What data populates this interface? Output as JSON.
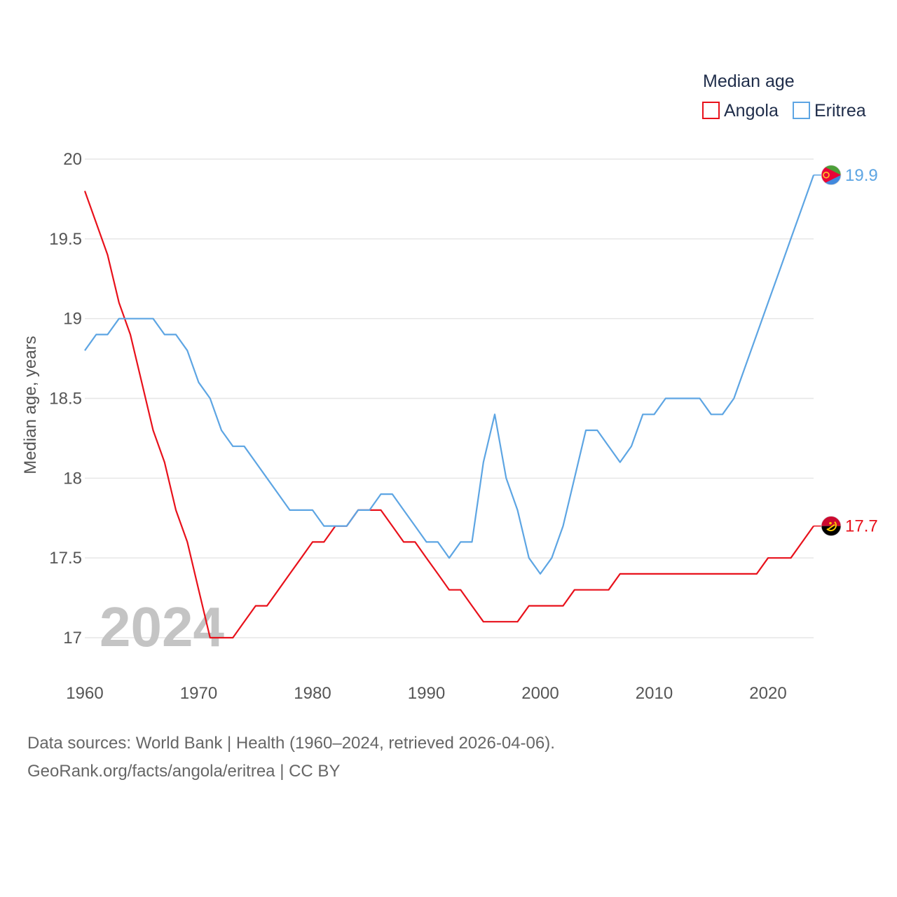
{
  "chart_data": {
    "type": "line",
    "title": "Median age",
    "ylabel": "Median age, years",
    "xlabel": "",
    "xlim": [
      1960,
      2024
    ],
    "ylim": [
      17,
      20
    ],
    "x_ticks": [
      1960,
      1970,
      1980,
      1990,
      2000,
      2010,
      2020
    ],
    "y_ticks": [
      17,
      17.5,
      18,
      18.5,
      19,
      19.5,
      20
    ],
    "y_tick_labels": [
      "17",
      "17.5",
      "18",
      "18.5",
      "19",
      "19.5",
      "20"
    ],
    "grid": true,
    "legend_position": "top-right",
    "year_label": "2024",
    "x": [
      1960,
      1961,
      1962,
      1963,
      1964,
      1965,
      1966,
      1967,
      1968,
      1969,
      1970,
      1971,
      1972,
      1973,
      1974,
      1975,
      1976,
      1977,
      1978,
      1979,
      1980,
      1981,
      1982,
      1983,
      1984,
      1985,
      1986,
      1987,
      1988,
      1989,
      1990,
      1991,
      1992,
      1993,
      1994,
      1995,
      1996,
      1997,
      1998,
      1999,
      2000,
      2001,
      2002,
      2003,
      2004,
      2005,
      2006,
      2007,
      2008,
      2009,
      2010,
      2011,
      2012,
      2013,
      2014,
      2015,
      2016,
      2017,
      2018,
      2019,
      2020,
      2021,
      2022,
      2023,
      2024
    ],
    "series": [
      {
        "name": "Angola",
        "color": "#e8111b",
        "end_label": "17.7",
        "flag": "angola-flag-icon",
        "values": [
          19.8,
          19.6,
          19.4,
          19.1,
          18.9,
          18.6,
          18.3,
          18.1,
          17.8,
          17.6,
          17.3,
          17.0,
          17.0,
          17.0,
          17.1,
          17.2,
          17.2,
          17.3,
          17.4,
          17.5,
          17.6,
          17.6,
          17.7,
          17.7,
          17.8,
          17.8,
          17.8,
          17.7,
          17.6,
          17.6,
          17.5,
          17.4,
          17.3,
          17.3,
          17.2,
          17.1,
          17.1,
          17.1,
          17.1,
          17.2,
          17.2,
          17.2,
          17.2,
          17.3,
          17.3,
          17.3,
          17.3,
          17.4,
          17.4,
          17.4,
          17.4,
          17.4,
          17.4,
          17.4,
          17.4,
          17.4,
          17.4,
          17.4,
          17.4,
          17.4,
          17.5,
          17.5,
          17.5,
          17.6,
          17.7
        ]
      },
      {
        "name": "Eritrea",
        "color": "#5da5e3",
        "end_label": "19.9",
        "flag": "eritrea-flag-icon",
        "values": [
          18.8,
          18.9,
          18.9,
          19.0,
          19.0,
          19.0,
          19.0,
          18.9,
          18.9,
          18.8,
          18.6,
          18.5,
          18.3,
          18.2,
          18.2,
          18.1,
          18.0,
          17.9,
          17.8,
          17.8,
          17.8,
          17.7,
          17.7,
          17.7,
          17.8,
          17.8,
          17.9,
          17.9,
          17.8,
          17.7,
          17.6,
          17.6,
          17.5,
          17.6,
          17.6,
          18.1,
          18.4,
          18.0,
          17.8,
          17.5,
          17.4,
          17.5,
          17.7,
          18.0,
          18.3,
          18.3,
          18.2,
          18.1,
          18.2,
          18.4,
          18.4,
          18.5,
          18.5,
          18.5,
          18.5,
          18.4,
          18.4,
          18.5,
          18.7,
          18.9,
          19.1,
          19.3,
          19.5,
          19.7,
          19.9
        ]
      }
    ]
  },
  "legend": {
    "title": "Median age"
  },
  "footer": {
    "line1": "Data sources: World Bank | Health (1960–2024, retrieved 2026-04-06).",
    "line2": "GeoRank.org/facts/angola/eritrea | CC BY"
  }
}
